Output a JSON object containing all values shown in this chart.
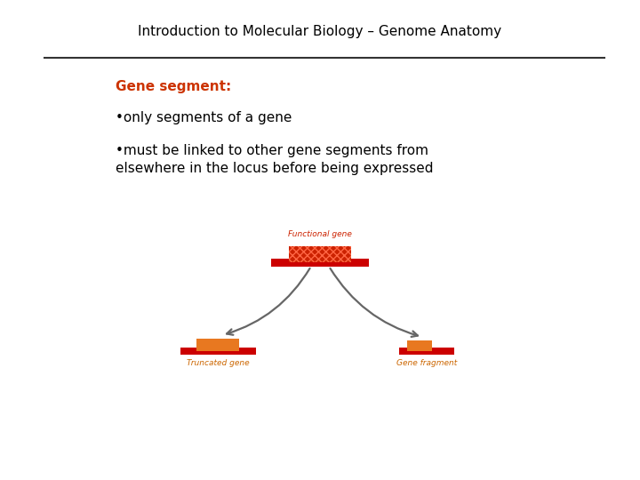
{
  "title": "Introduction to Molecular Biology – Genome Anatomy",
  "title_fontsize": 11,
  "bg_color": "#ffffff",
  "section_title": "Gene segment:",
  "bullet1": "•only segments of a gene",
  "bullet2": "•must be linked to other gene segments from\nelsewhere in the locus before being expressed",
  "text_color": "#000000",
  "section_title_color": "#cc3300",
  "label_top": "Functional gene",
  "label_left": "Truncated gene",
  "label_right": "Gene fragment",
  "label_color": "#cc6600",
  "top_label_color": "#cc2200",
  "bar_red": "#cc0000",
  "bar_orange": "#e87820",
  "hatch_color": "#cc2200",
  "arrow_color": "#666666",
  "line_color": "#333333"
}
